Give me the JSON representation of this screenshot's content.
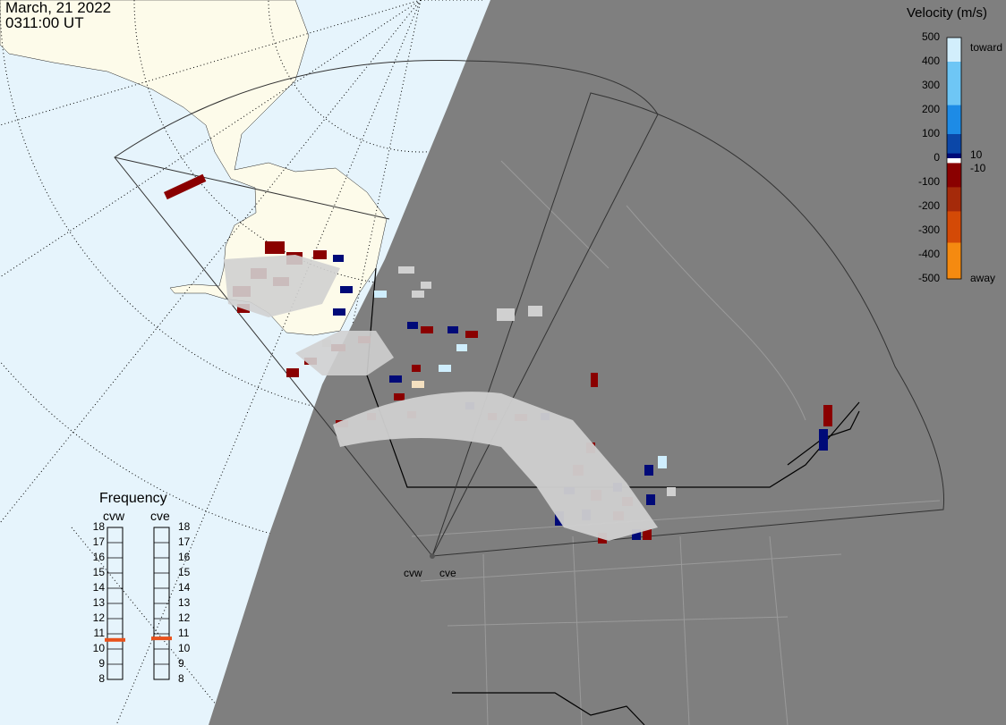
{
  "header": {
    "date": "March, 21 2022",
    "time": "0311:00 UT"
  },
  "velocity_scale": {
    "title": "Velocity (m/s)",
    "ticks": [
      "500",
      "400",
      "300",
      "200",
      "100",
      "0",
      "-100",
      "-200",
      "-300",
      "-400",
      "-500"
    ],
    "toward_label": "toward",
    "away_label": "away",
    "pos_threshold": "10",
    "neg_threshold": "-10",
    "colors": {
      "toward_light": "#cfeefe",
      "toward_dark": "#000a78",
      "away_dark": "#8a0000",
      "away_light": "#fdd9b0",
      "ground_scatter": "#d0d0d0"
    }
  },
  "frequency_panel": {
    "title": "Frequency",
    "radars": [
      {
        "label": "cvw",
        "frequency_mhz": 10.6
      },
      {
        "label": "cve",
        "frequency_mhz": 10.7
      }
    ],
    "scale": [
      "18",
      "17",
      "16",
      "15",
      "14",
      "13",
      "12",
      "11",
      "10",
      "9",
      "8"
    ],
    "marker_color": "#e8521c"
  },
  "radar_sites": [
    {
      "label": "cvw"
    },
    {
      "label": "cve"
    }
  ],
  "colors": {
    "ocean": "#e6f4fc",
    "land": "#fdfbea",
    "night": "#7f7f7f",
    "night_border": "#9a9a9a"
  }
}
